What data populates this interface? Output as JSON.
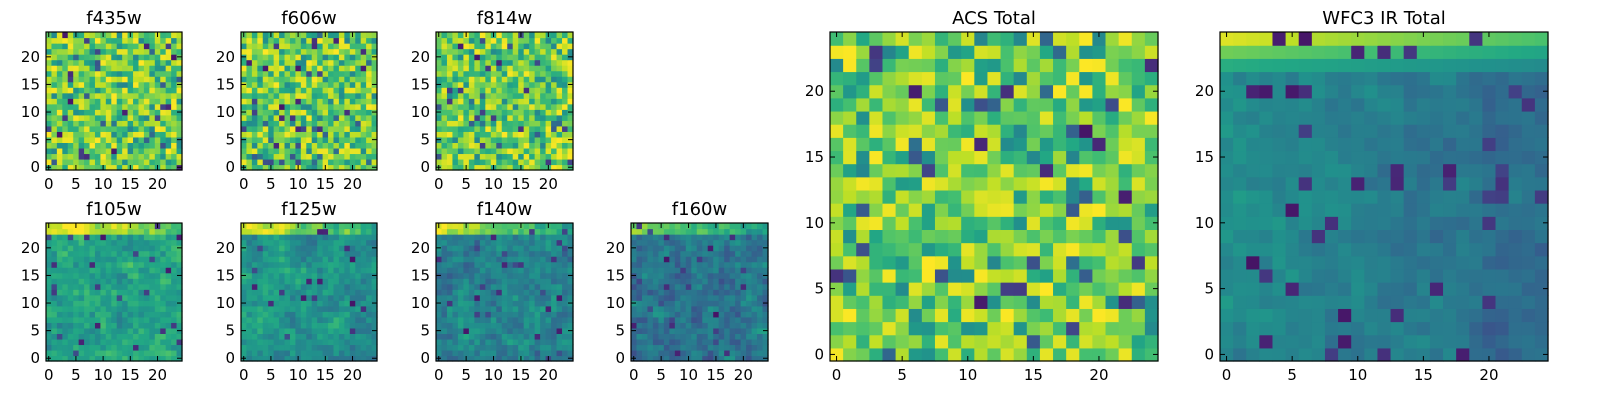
{
  "figure": {
    "description_colormap": "viridis",
    "colors": {
      "low": "#440154",
      "mid": "#21918c",
      "high": "#fde725"
    }
  },
  "chart_data": [
    {
      "type": "heatmap",
      "title": "f435w",
      "grid_size": 25,
      "xlim": [
        0,
        24
      ],
      "ylim": [
        0,
        24
      ],
      "xticks": [
        0,
        5,
        10,
        15,
        20
      ],
      "yticks": [
        0,
        5,
        10,
        15,
        20
      ],
      "character": "noisy, mostly yellow-green with scattered dark pixels",
      "seed": 11
    },
    {
      "type": "heatmap",
      "title": "f606w",
      "grid_size": 25,
      "xlim": [
        0,
        24
      ],
      "ylim": [
        0,
        24
      ],
      "xticks": [
        0,
        5,
        10,
        15,
        20
      ],
      "yticks": [
        0,
        5,
        10,
        15,
        20
      ],
      "character": "noisy, mostly yellow-green with scattered dark pixels",
      "seed": 23
    },
    {
      "type": "heatmap",
      "title": "f814w",
      "grid_size": 25,
      "xlim": [
        0,
        24
      ],
      "ylim": [
        0,
        24
      ],
      "xticks": [
        0,
        5,
        10,
        15,
        20
      ],
      "yticks": [
        0,
        5,
        10,
        15,
        20
      ],
      "character": "noisy, mostly yellow-green with scattered dark pixels",
      "seed": 37
    },
    {
      "type": "heatmap",
      "title": "f105w",
      "grid_size": 25,
      "xlim": [
        0,
        24
      ],
      "ylim": [
        0,
        24
      ],
      "xticks": [
        0,
        5,
        10,
        15,
        20
      ],
      "yticks": [
        0,
        5,
        10,
        15,
        20
      ],
      "character": "brighter band at top edge, green-teal noise",
      "seed": 41
    },
    {
      "type": "heatmap",
      "title": "f125w",
      "grid_size": 25,
      "xlim": [
        0,
        24
      ],
      "ylim": [
        0,
        24
      ],
      "xticks": [
        0,
        5,
        10,
        15,
        20
      ],
      "yticks": [
        0,
        5,
        10,
        15,
        20
      ],
      "character": "brighter band at top edge, green-teal noise",
      "seed": 53
    },
    {
      "type": "heatmap",
      "title": "f140w",
      "grid_size": 25,
      "xlim": [
        0,
        24
      ],
      "ylim": [
        0,
        24
      ],
      "xticks": [
        0,
        5,
        10,
        15,
        20
      ],
      "yticks": [
        0,
        5,
        10,
        15,
        20
      ],
      "character": "brighter band at top edge, teal noise",
      "seed": 67
    },
    {
      "type": "heatmap",
      "title": "f160w",
      "grid_size": 25,
      "xlim": [
        0,
        24
      ],
      "ylim": [
        0,
        24
      ],
      "xticks": [
        0,
        5,
        10,
        15,
        20
      ],
      "yticks": [
        0,
        5,
        10,
        15,
        20
      ],
      "character": "bright top-left, darker teal/blue noise",
      "seed": 79
    },
    {
      "type": "heatmap",
      "title": "ACS Total",
      "grid_size": 25,
      "xlim": [
        0,
        24
      ],
      "ylim": [
        0,
        24
      ],
      "xticks": [
        0,
        5,
        10,
        15,
        20
      ],
      "yticks": [
        0,
        5,
        10,
        15,
        20
      ],
      "character": "mostly yellow-green, scattered dark purple pixels",
      "seed": 97
    },
    {
      "type": "heatmap",
      "title": "WFC3 IR Total",
      "grid_size": 25,
      "xlim": [
        0,
        24
      ],
      "ylim": [
        0,
        24
      ],
      "xticks": [
        0,
        5,
        10,
        15,
        20
      ],
      "yticks": [
        0,
        5,
        10,
        15,
        20
      ],
      "character": "yellow band at top, mostly teal-blue, dark purple patches right side",
      "seed": 131
    }
  ]
}
